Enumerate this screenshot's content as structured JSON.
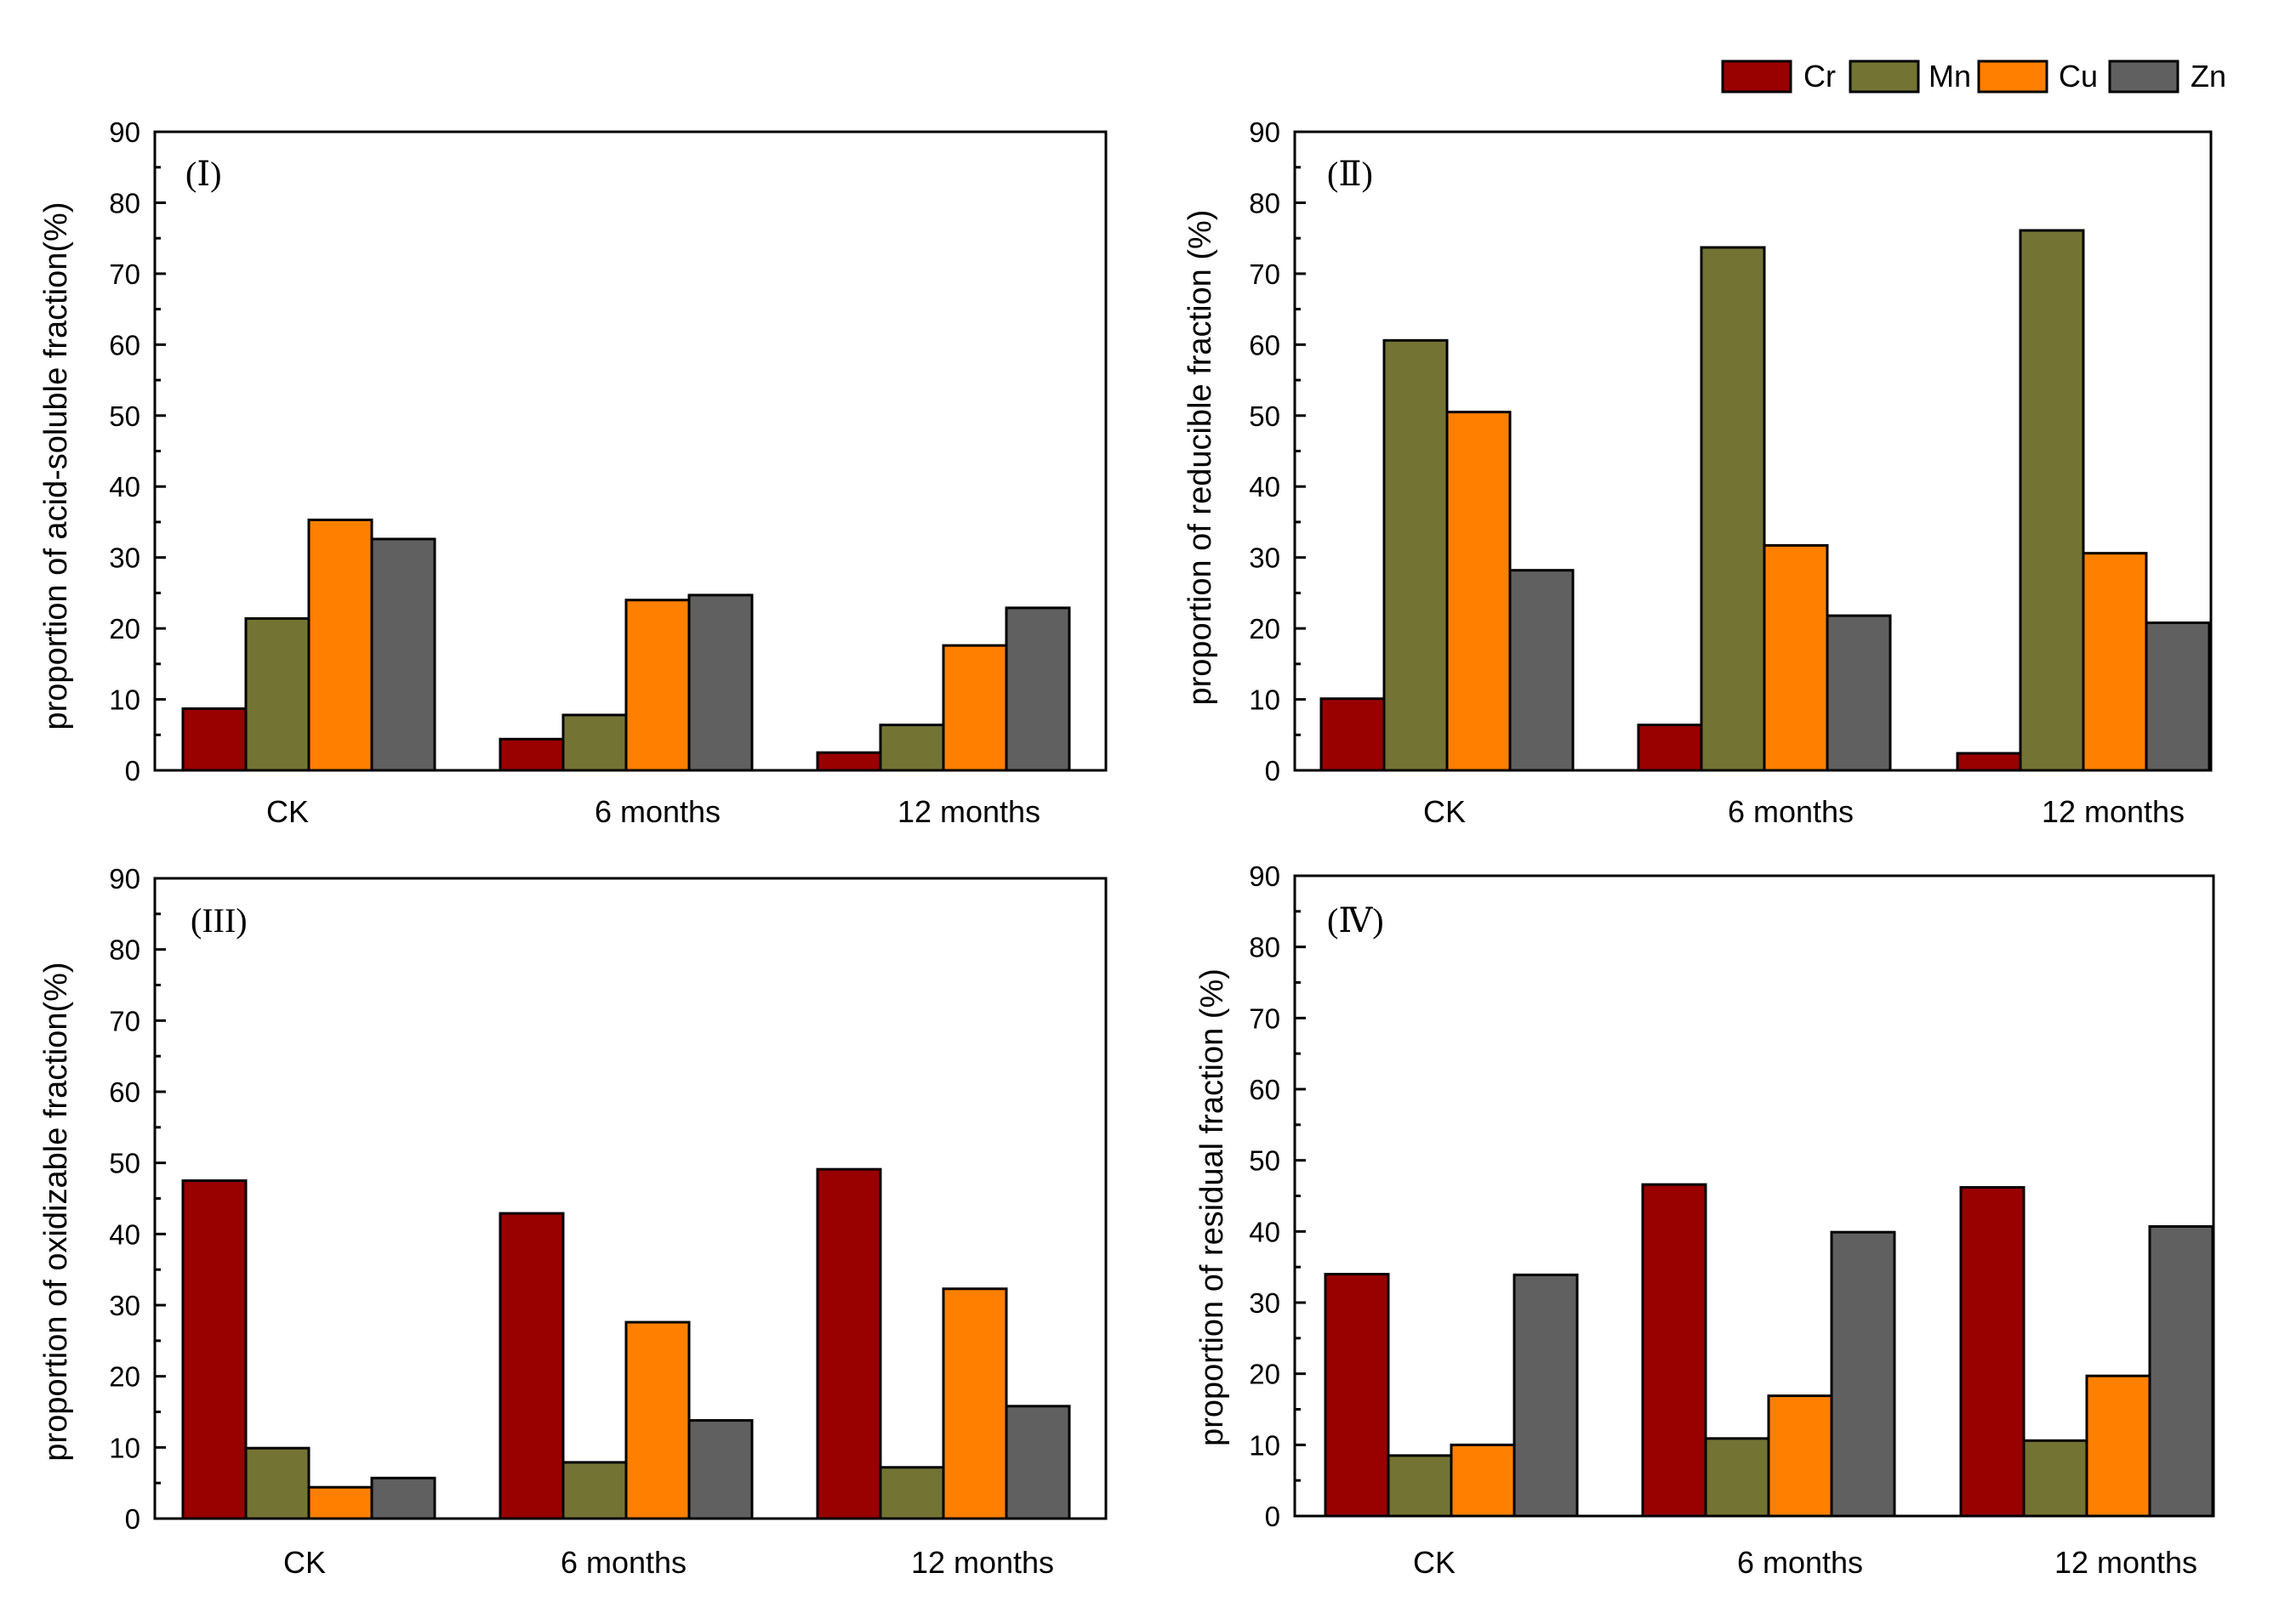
{
  "legend": {
    "placement": "top-right",
    "items": [
      {
        "name": "Cr",
        "color": "#990000"
      },
      {
        "name": "Mn",
        "color": "#737434"
      },
      {
        "name": "Cu",
        "color": "#ff8000"
      },
      {
        "name": "Zn",
        "color": "#606060"
      }
    ]
  },
  "chart_data": [
    {
      "type": "bar",
      "panel_label": "(Ⅰ)",
      "ylabel": "proportion of acid-soluble fraction(%)",
      "xlabel": "",
      "ylim": [
        0,
        90
      ],
      "yticks": [
        "0",
        "10",
        "20",
        "30",
        "40",
        "50",
        "60",
        "70",
        "80",
        "90"
      ],
      "categories": [
        "CK",
        "6 months",
        "12 months"
      ],
      "series": [
        {
          "name": "Cr",
          "values": [
            8.7,
            4.4,
            2.5
          ]
        },
        {
          "name": "Mn",
          "values": [
            21.4,
            7.8,
            6.4
          ]
        },
        {
          "name": "Cu",
          "values": [
            35.3,
            24.0,
            17.6
          ]
        },
        {
          "name": "Zn",
          "values": [
            32.6,
            24.7,
            22.9
          ]
        }
      ],
      "grid": false
    },
    {
      "type": "bar",
      "panel_label": "(Ⅱ)",
      "ylabel": "proportion of reducible fraction (%)",
      "xlabel": "",
      "ylim": [
        0,
        90
      ],
      "yticks": [
        "0",
        "10",
        "20",
        "30",
        "40",
        "50",
        "60",
        "70",
        "80",
        "90"
      ],
      "categories": [
        "CK",
        "6 months",
        "12 months"
      ],
      "series": [
        {
          "name": "Cr",
          "values": [
            10.1,
            6.4,
            2.4
          ]
        },
        {
          "name": "Mn",
          "values": [
            60.6,
            73.7,
            76.1
          ]
        },
        {
          "name": "Cu",
          "values": [
            50.5,
            31.7,
            30.6
          ]
        },
        {
          "name": "Zn",
          "values": [
            28.2,
            21.8,
            20.8
          ]
        }
      ],
      "grid": false
    },
    {
      "type": "bar",
      "panel_label": "(III)",
      "ylabel": "proportion of oxidizable fraction(%)",
      "xlabel": "",
      "ylim": [
        0,
        90
      ],
      "yticks": [
        "0",
        "10",
        "20",
        "30",
        "40",
        "50",
        "60",
        "70",
        "80",
        "90"
      ],
      "categories": [
        "CK",
        "6 months",
        "12 months"
      ],
      "series": [
        {
          "name": "Cr",
          "values": [
            47.5,
            42.9,
            49.1
          ]
        },
        {
          "name": "Mn",
          "values": [
            9.9,
            7.9,
            7.2
          ]
        },
        {
          "name": "Cu",
          "values": [
            4.4,
            27.6,
            32.3
          ]
        },
        {
          "name": "Zn",
          "values": [
            5.7,
            13.8,
            15.8
          ]
        }
      ],
      "grid": false
    },
    {
      "type": "bar",
      "panel_label": "(Ⅳ)",
      "ylabel": "proportion of residual fraction (%)",
      "xlabel": "",
      "ylim": [
        0,
        90
      ],
      "yticks": [
        "0",
        "10",
        "20",
        "30",
        "40",
        "50",
        "60",
        "70",
        "80",
        "90"
      ],
      "categories": [
        "CK",
        "6 months",
        "12 months"
      ],
      "series": [
        {
          "name": "Cr",
          "values": [
            34.0,
            46.6,
            46.2
          ]
        },
        {
          "name": "Mn",
          "values": [
            8.5,
            10.9,
            10.6
          ]
        },
        {
          "name": "Cu",
          "values": [
            10.0,
            16.9,
            19.7
          ]
        },
        {
          "name": "Zn",
          "values": [
            33.9,
            39.9,
            40.7
          ]
        }
      ],
      "grid": false
    }
  ]
}
